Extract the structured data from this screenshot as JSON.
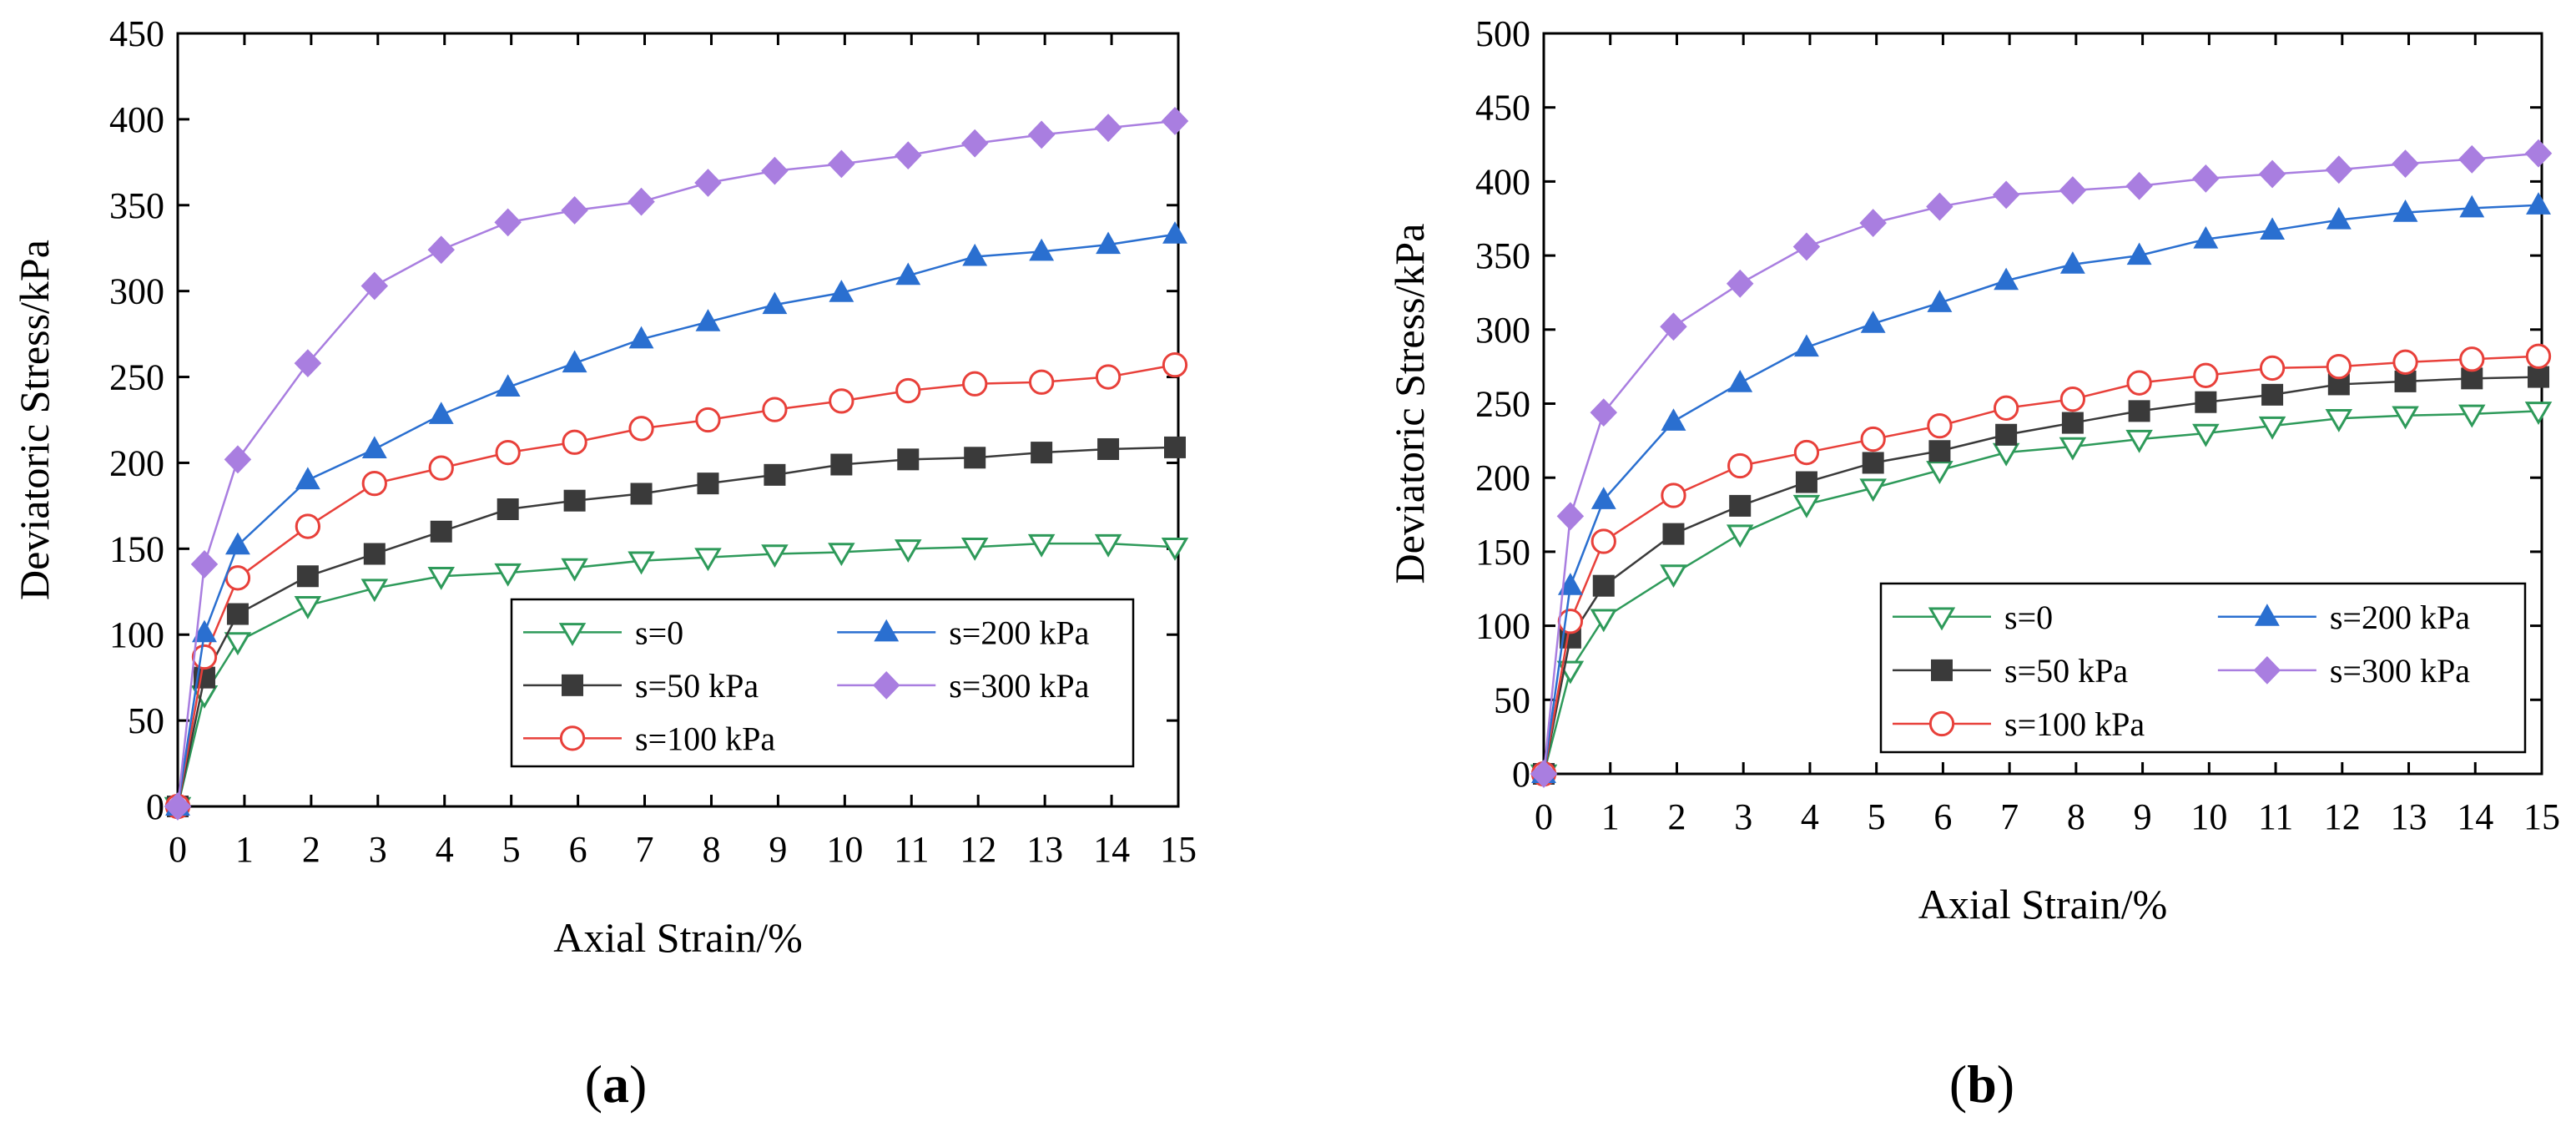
{
  "chart_data": [
    {
      "type": "line",
      "panel_label": "a",
      "xlabel": "Axial Strain/%",
      "ylabel": "Deviatoric Stress/kPa",
      "xlim": [
        0,
        15
      ],
      "ylim": [
        0,
        450
      ],
      "xticks": [
        0,
        1,
        2,
        3,
        4,
        5,
        6,
        7,
        8,
        9,
        10,
        11,
        12,
        13,
        14,
        15
      ],
      "yticks": [
        0,
        50,
        100,
        150,
        200,
        250,
        300,
        350,
        400,
        450
      ],
      "legend_position": "bottom-right",
      "x": [
        0,
        0.4,
        0.9,
        1.95,
        2.95,
        3.95,
        4.95,
        5.95,
        6.95,
        7.95,
        8.95,
        9.95,
        10.95,
        11.95,
        12.95,
        13.95,
        14.95
      ],
      "series": [
        {
          "name": "s=0",
          "color": "#2e9a5a",
          "marker": "triangle-down-open",
          "values": [
            0,
            65,
            96,
            117,
            127,
            134,
            136,
            139,
            143,
            145,
            147,
            148,
            150,
            151,
            153,
            153,
            151
          ]
        },
        {
          "name": "s=50 kPa",
          "color": "#3a3a3a",
          "marker": "square",
          "values": [
            0,
            75,
            112,
            134,
            147,
            160,
            173,
            178,
            182,
            188,
            193,
            199,
            202,
            203,
            206,
            208,
            209
          ]
        },
        {
          "name": "s=100 kPa",
          "color": "#e8403a",
          "marker": "circle-open",
          "values": [
            0,
            87,
            133,
            163,
            188,
            197,
            206,
            212,
            220,
            225,
            231,
            236,
            242,
            246,
            247,
            250,
            257
          ]
        },
        {
          "name": "s=200 kPa",
          "color": "#2a6fd0",
          "marker": "triangle-up",
          "values": [
            0,
            101,
            152,
            190,
            208,
            228,
            244,
            258,
            272,
            282,
            292,
            299,
            309,
            320,
            323,
            327,
            333
          ]
        },
        {
          "name": "s=300 kPa",
          "color": "#a97ee0",
          "marker": "diamond",
          "values": [
            0,
            141,
            202,
            258,
            303,
            324,
            340,
            347,
            352,
            363,
            370,
            374,
            379,
            386,
            391,
            395,
            399
          ]
        }
      ]
    },
    {
      "type": "line",
      "panel_label": "b",
      "xlabel": "Axial Strain/%",
      "ylabel": "Deviatoric Stress/kPa",
      "xlim": [
        0,
        15
      ],
      "ylim": [
        0,
        500
      ],
      "xticks": [
        0,
        1,
        2,
        3,
        4,
        5,
        6,
        7,
        8,
        9,
        10,
        11,
        12,
        13,
        14,
        15
      ],
      "yticks": [
        0,
        50,
        100,
        150,
        200,
        250,
        300,
        350,
        400,
        450,
        500
      ],
      "legend_position": "bottom-right",
      "x": [
        0,
        0.4,
        0.9,
        1.95,
        2.95,
        3.95,
        4.95,
        5.95,
        6.95,
        7.95,
        8.95,
        9.95,
        10.95,
        11.95,
        12.95,
        13.95,
        14.95
      ],
      "series": [
        {
          "name": "s=0",
          "color": "#2e9a5a",
          "marker": "triangle-down-open",
          "values": [
            0,
            70,
            105,
            135,
            162,
            182,
            193,
            205,
            217,
            221,
            226,
            230,
            235,
            240,
            242,
            243,
            245
          ]
        },
        {
          "name": "s=50 kPa",
          "color": "#3a3a3a",
          "marker": "square",
          "values": [
            0,
            92,
            127,
            162,
            181,
            197,
            210,
            218,
            229,
            237,
            245,
            251,
            256,
            263,
            265,
            267,
            268
          ]
        },
        {
          "name": "s=100 kPa",
          "color": "#e8403a",
          "marker": "circle-open",
          "values": [
            0,
            103,
            157,
            188,
            208,
            217,
            226,
            235,
            247,
            253,
            264,
            269,
            274,
            275,
            278,
            280,
            282
          ]
        },
        {
          "name": "s=200 kPa",
          "color": "#2a6fd0",
          "marker": "triangle-up",
          "values": [
            0,
            127,
            185,
            238,
            264,
            288,
            304,
            318,
            333,
            344,
            350,
            361,
            367,
            374,
            379,
            382,
            384
          ]
        },
        {
          "name": "s=300 kPa",
          "color": "#a97ee0",
          "marker": "diamond",
          "values": [
            0,
            174,
            244,
            302,
            331,
            356,
            372,
            383,
            391,
            394,
            397,
            402,
            405,
            408,
            412,
            415,
            419
          ]
        }
      ]
    }
  ]
}
